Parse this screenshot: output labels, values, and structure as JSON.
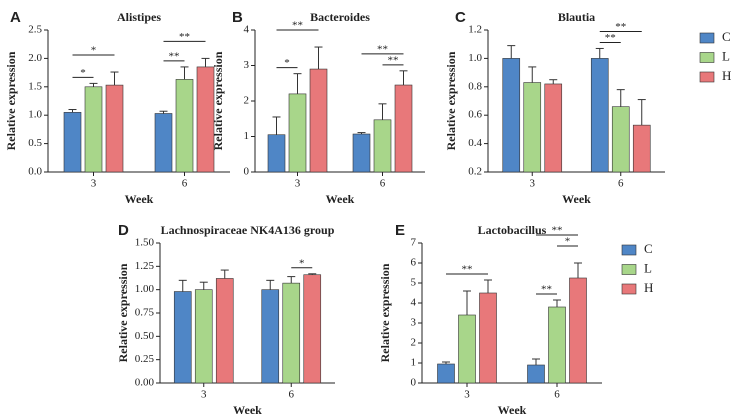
{
  "chart_data": [
    {
      "type": "bar",
      "label": "A",
      "title": "Alistipes",
      "x_label": "Week",
      "y_label": "Relative expression",
      "categories": [
        "3",
        "6"
      ],
      "series": [
        {
          "name": "C",
          "color": "#4f86c6",
          "values": [
            1.05,
            1.03
          ],
          "errors": [
            0.05,
            0.04
          ]
        },
        {
          "name": "L",
          "color": "#a8d68a",
          "values": [
            1.5,
            1.63
          ],
          "errors": [
            0.06,
            0.22
          ]
        },
        {
          "name": "H",
          "color": "#e8787a",
          "values": [
            1.53,
            1.85
          ],
          "errors": [
            0.23,
            0.15
          ]
        }
      ],
      "ylim": [
        0,
        2.5
      ],
      "yticks": [
        {
          "value": 0,
          "label": "0.0"
        },
        0.5,
        {
          "value": 1,
          "label": "1.0"
        },
        1.5,
        {
          "value": 2,
          "label": "2.0"
        },
        2.5
      ],
      "annotations": [
        {
          "text": "*",
          "category": "3",
          "series": [
            "C",
            "L"
          ]
        },
        {
          "text": "*",
          "category": "3",
          "series": [
            "C",
            "H"
          ]
        },
        {
          "text": "**",
          "category": "6",
          "series": [
            "C",
            "L"
          ]
        },
        {
          "text": "**",
          "category": "6",
          "series": [
            "C",
            "H"
          ]
        }
      ]
    },
    {
      "type": "bar",
      "label": "B",
      "title": "Bacteroides",
      "x_label": "Week",
      "y_label": "Relative expression",
      "categories": [
        "3",
        "6"
      ],
      "series": [
        {
          "name": "C",
          "color": "#4f86c6",
          "values": [
            1.05,
            1.07
          ],
          "errors": [
            0.5,
            0.04
          ]
        },
        {
          "name": "L",
          "color": "#a8d68a",
          "values": [
            2.2,
            1.47
          ],
          "errors": [
            0.57,
            0.45
          ]
        },
        {
          "name": "H",
          "color": "#e8787a",
          "values": [
            2.9,
            2.45
          ],
          "errors": [
            0.62,
            0.4
          ]
        }
      ],
      "ylim": [
        0,
        4
      ],
      "yticks": [
        0,
        1,
        2,
        3,
        4
      ],
      "annotations": [
        {
          "text": "*",
          "category": "3",
          "series": [
            "C",
            "L"
          ]
        },
        {
          "text": "**",
          "category": "3",
          "series": [
            "C",
            "H"
          ]
        },
        {
          "text": "**",
          "category": "6",
          "series": [
            "L",
            "H"
          ]
        },
        {
          "text": "**",
          "category": "6",
          "series": [
            "C",
            "H"
          ]
        }
      ]
    },
    {
      "type": "bar",
      "label": "C",
      "title": "Blautia",
      "x_label": "Week",
      "y_label": "Relative expression",
      "categories": [
        "3",
        "6"
      ],
      "legend": true,
      "series": [
        {
          "name": "C",
          "color": "#4f86c6",
          "values": [
            1.0,
            1.0
          ],
          "errors": [
            0.09,
            0.07
          ]
        },
        {
          "name": "L",
          "color": "#a8d68a",
          "values": [
            0.83,
            0.66
          ],
          "errors": [
            0.11,
            0.12
          ]
        },
        {
          "name": "H",
          "color": "#e8787a",
          "values": [
            0.82,
            0.53
          ],
          "errors": [
            0.03,
            0.18
          ]
        }
      ],
      "ylim": [
        0.2,
        1.2
      ],
      "yticks": [
        0.2,
        0.4,
        0.6,
        0.8,
        {
          "value": 1,
          "label": "1.0"
        },
        1.2
      ],
      "annotations": [
        {
          "text": "**",
          "category": "6",
          "series": [
            "C",
            "L"
          ]
        },
        {
          "text": "**",
          "category": "6",
          "series": [
            "C",
            "H"
          ]
        }
      ]
    },
    {
      "type": "bar",
      "label": "D",
      "title": "Lachnospiraceae NK4A136 group",
      "x_label": "Week",
      "y_label": "Relative expression",
      "categories": [
        "3",
        "6"
      ],
      "series": [
        {
          "name": "C",
          "color": "#4f86c6",
          "values": [
            0.98,
            1.0
          ],
          "errors": [
            0.12,
            0.1
          ]
        },
        {
          "name": "L",
          "color": "#a8d68a",
          "values": [
            1.0,
            1.07
          ],
          "errors": [
            0.08,
            0.07
          ]
        },
        {
          "name": "H",
          "color": "#e8787a",
          "values": [
            1.12,
            1.16
          ],
          "errors": [
            0.09,
            0.01
          ]
        }
      ],
      "ylim": [
        0,
        1.5
      ],
      "yticks": [
        {
          "value": 0,
          "label": "0.00"
        },
        {
          "value": 0.25,
          "label": "0.25"
        },
        {
          "value": 0.5,
          "label": "0.50"
        },
        {
          "value": 0.75,
          "label": "0.75"
        },
        {
          "value": 1,
          "label": "1.00"
        },
        {
          "value": 1.25,
          "label": "1.25"
        },
        {
          "value": 1.5,
          "label": "1.50"
        }
      ],
      "annotations": [
        {
          "text": "*",
          "category": "6",
          "series": [
            "L",
            "H"
          ]
        }
      ]
    },
    {
      "type": "bar",
      "label": "E",
      "title": "Lactobacillus",
      "x_label": "Week",
      "y_label": "Relative expression",
      "categories": [
        "3",
        "6"
      ],
      "legend": true,
      "series": [
        {
          "name": "C",
          "color": "#4f86c6",
          "values": [
            0.95,
            0.9
          ],
          "errors": [
            0.1,
            0.3
          ]
        },
        {
          "name": "L",
          "color": "#a8d68a",
          "values": [
            3.4,
            3.8
          ],
          "errors": [
            1.2,
            0.35
          ]
        },
        {
          "name": "H",
          "color": "#e8787a",
          "values": [
            4.5,
            5.25
          ],
          "errors": [
            0.65,
            0.75
          ]
        }
      ],
      "ylim": [
        0,
        7
      ],
      "yticks": [
        0,
        1,
        2,
        3,
        4,
        5,
        6,
        7
      ],
      "annotations": [
        {
          "text": "**",
          "category": "3",
          "series": [
            "C",
            "H"
          ]
        },
        {
          "text": "**",
          "category": "6",
          "series": [
            "C",
            "L"
          ]
        },
        {
          "text": "*",
          "category": "6",
          "series": [
            "L",
            "H"
          ]
        },
        {
          "text": "**",
          "category": "6",
          "series": [
            "C",
            "H"
          ]
        }
      ]
    }
  ]
}
